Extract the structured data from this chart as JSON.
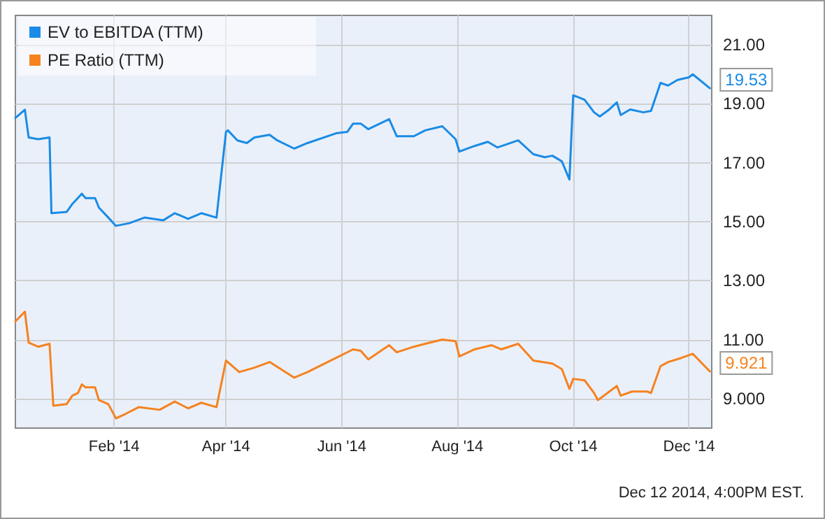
{
  "chart_data": {
    "type": "line",
    "legend": "top left",
    "grid": true,
    "marker": "none",
    "line_style": "solid",
    "xlim": [
      "2013-12-11",
      "2014-12-13"
    ],
    "xticks": [
      {
        "value": "2014-02-01",
        "label": "Feb '14"
      },
      {
        "value": "2014-04-01",
        "label": "Apr '14"
      },
      {
        "value": "2014-06-01",
        "label": "Jun '14"
      },
      {
        "value": "2014-08-01",
        "label": "Aug '14"
      },
      {
        "value": "2014-10-01",
        "label": "Oct '14"
      },
      {
        "value": "2014-12-01",
        "label": "Dec '14"
      }
    ],
    "ylim": [
      8,
      22
    ],
    "yticks": [
      {
        "value": 9,
        "label": "9.000"
      },
      {
        "value": 11,
        "label": "11.00"
      },
      {
        "value": 13,
        "label": "13.00"
      },
      {
        "value": 15,
        "label": "15.00"
      },
      {
        "value": 17,
        "label": "17.00"
      },
      {
        "value": 19,
        "label": "19.00"
      },
      {
        "value": 21,
        "label": "21.00"
      }
    ],
    "annotations": [
      "Dec 12 2014, 4:00PM EST."
    ],
    "series": [
      {
        "name": "EV to EBITDA (TTM)",
        "color": "#1a8be6",
        "x": [
          "2013-12-11",
          "2013-12-16",
          "2013-12-18",
          "2013-12-23",
          "2013-12-29",
          "2013-12-30",
          "2014-01-07",
          "2014-01-10",
          "2014-01-15",
          "2014-01-17",
          "2014-01-22",
          "2014-01-24",
          "2014-01-29",
          "2014-02-02",
          "2014-02-09",
          "2014-02-17",
          "2014-02-27",
          "2014-03-05",
          "2014-03-12",
          "2014-03-19",
          "2014-03-27",
          "2014-04-01",
          "2014-04-02",
          "2014-04-07",
          "2014-04-12",
          "2014-04-16",
          "2014-04-24",
          "2014-04-28",
          "2014-05-07",
          "2014-05-14",
          "2014-05-29",
          "2014-06-04",
          "2014-06-07",
          "2014-06-11",
          "2014-06-15",
          "2014-06-26",
          "2014-06-30",
          "2014-07-09",
          "2014-07-15",
          "2014-07-24",
          "2014-07-31",
          "2014-08-02",
          "2014-08-10",
          "2014-08-17",
          "2014-08-22",
          "2014-09-02",
          "2014-09-10",
          "2014-09-16",
          "2014-09-20",
          "2014-09-25",
          "2014-09-29",
          "2014-10-01",
          "2014-10-07",
          "2014-10-12",
          "2014-10-15",
          "2014-10-20",
          "2014-10-24",
          "2014-10-26",
          "2014-10-31",
          "2014-11-07",
          "2014-11-11",
          "2014-11-16",
          "2014-11-20",
          "2014-11-25",
          "2014-12-01",
          "2014-12-03",
          "2014-12-12"
        ],
        "values": [
          18.52,
          18.8,
          17.86,
          17.8,
          17.86,
          15.29,
          15.33,
          15.6,
          15.95,
          15.8,
          15.8,
          15.48,
          15.14,
          14.86,
          14.95,
          15.14,
          15.05,
          15.29,
          15.1,
          15.29,
          15.14,
          18.05,
          18.1,
          17.76,
          17.67,
          17.86,
          17.95,
          17.76,
          17.48,
          17.67,
          18.0,
          18.05,
          18.33,
          18.33,
          18.14,
          18.48,
          17.9,
          17.9,
          18.1,
          18.24,
          17.8,
          17.38,
          17.57,
          17.71,
          17.52,
          17.76,
          17.29,
          17.19,
          17.24,
          17.05,
          16.43,
          19.29,
          19.14,
          18.71,
          18.57,
          18.81,
          19.05,
          18.62,
          18.81,
          18.71,
          18.76,
          19.71,
          19.62,
          19.81,
          19.9,
          20.0,
          19.53
        ],
        "value_labels": [
          null,
          null,
          null,
          null,
          null,
          null,
          null,
          null,
          null,
          null,
          null,
          null,
          null,
          null,
          null,
          null,
          null,
          null,
          null,
          null,
          null,
          null,
          null,
          null,
          null,
          null,
          null,
          null,
          null,
          null,
          null,
          null,
          null,
          null,
          null,
          null,
          null,
          null,
          null,
          null,
          null,
          null,
          null,
          null,
          null,
          null,
          null,
          null,
          null,
          null,
          null,
          null,
          null,
          null,
          null,
          null,
          null,
          null,
          null,
          null,
          null,
          null,
          null,
          null,
          null,
          null,
          "19.53"
        ]
      },
      {
        "name": "PE Ratio (TTM)",
        "color": "#f5821f",
        "x": [
          "2013-12-11",
          "2013-12-16",
          "2013-12-18",
          "2013-12-23",
          "2013-12-29",
          "2013-12-31",
          "2014-01-07",
          "2014-01-10",
          "2014-01-13",
          "2014-01-15",
          "2014-01-17",
          "2014-01-22",
          "2014-01-24",
          "2014-01-29",
          "2014-02-02",
          "2014-02-07",
          "2014-02-14",
          "2014-02-25",
          "2014-03-05",
          "2014-03-12",
          "2014-03-19",
          "2014-03-27",
          "2014-04-01",
          "2014-04-08",
          "2014-04-16",
          "2014-04-24",
          "2014-05-07",
          "2014-05-14",
          "2014-05-29",
          "2014-06-07",
          "2014-06-11",
          "2014-06-15",
          "2014-06-26",
          "2014-06-30",
          "2014-07-09",
          "2014-07-15",
          "2014-07-24",
          "2014-07-31",
          "2014-08-02",
          "2014-08-10",
          "2014-08-19",
          "2014-08-24",
          "2014-09-02",
          "2014-09-10",
          "2014-09-20",
          "2014-09-25",
          "2014-09-29",
          "2014-10-01",
          "2014-10-07",
          "2014-10-12",
          "2014-10-14",
          "2014-10-18",
          "2014-10-24",
          "2014-10-26",
          "2014-11-01",
          "2014-11-09",
          "2014-11-11",
          "2014-11-16",
          "2014-11-20",
          "2014-11-27",
          "2014-12-03",
          "2014-12-12"
        ],
        "values": [
          11.62,
          11.95,
          10.9,
          10.76,
          10.86,
          8.76,
          8.81,
          9.1,
          9.19,
          9.48,
          9.38,
          9.38,
          8.95,
          8.81,
          8.33,
          8.48,
          8.71,
          8.62,
          8.9,
          8.67,
          8.86,
          8.71,
          10.29,
          9.9,
          10.05,
          10.24,
          9.71,
          9.9,
          10.38,
          10.67,
          10.62,
          10.33,
          10.81,
          10.57,
          10.76,
          10.86,
          11.0,
          10.95,
          10.43,
          10.67,
          10.81,
          10.67,
          10.86,
          10.29,
          10.19,
          10.0,
          9.33,
          9.67,
          9.62,
          9.19,
          8.95,
          9.14,
          9.43,
          9.1,
          9.24,
          9.24,
          9.19,
          10.1,
          10.24,
          10.38,
          10.52,
          9.921
        ],
        "value_labels": [
          null,
          null,
          null,
          null,
          null,
          null,
          null,
          null,
          null,
          null,
          null,
          null,
          null,
          null,
          null,
          null,
          null,
          null,
          null,
          null,
          null,
          null,
          null,
          null,
          null,
          null,
          null,
          null,
          null,
          null,
          null,
          null,
          null,
          null,
          null,
          null,
          null,
          null,
          null,
          null,
          null,
          null,
          null,
          null,
          null,
          null,
          null,
          null,
          null,
          null,
          null,
          null,
          null,
          null,
          null,
          null,
          null,
          null,
          null,
          null,
          null,
          "9.921"
        ]
      }
    ]
  }
}
